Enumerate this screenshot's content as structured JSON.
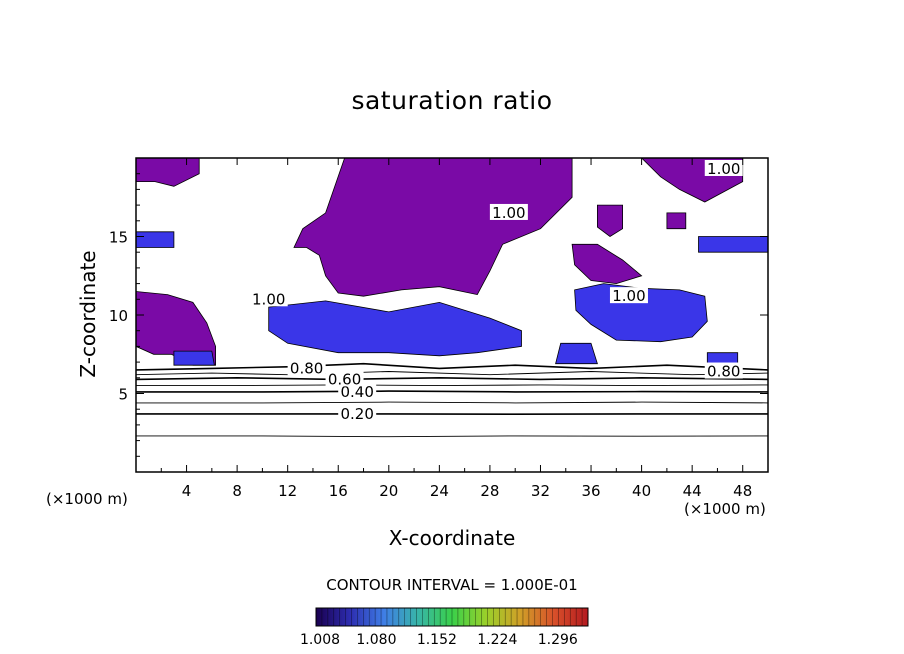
{
  "chart_data": {
    "type": "contour",
    "title": "saturation ratio",
    "xlabel": "X-coordinate",
    "ylabel": "Z-coordinate",
    "x_unit": "(×1000 m)",
    "y_unit": "(×1000 m)",
    "xlim": [
      0,
      50
    ],
    "ylim": [
      0,
      20
    ],
    "x_ticks": [
      "4",
      "8",
      "12",
      "16",
      "20",
      "24",
      "28",
      "32",
      "36",
      "40",
      "44",
      "48"
    ],
    "y_ticks": [
      "5",
      "10",
      "15"
    ],
    "contour_interval_text": "CONTOUR INTERVAL = 1.000E-01",
    "contour_labels": [
      {
        "text": "0.20",
        "x": 17.5,
        "y": 3.7
      },
      {
        "text": "0.40",
        "x": 17.5,
        "y": 5.1
      },
      {
        "text": "0.60",
        "x": 16.5,
        "y": 5.9
      },
      {
        "text": "0.80",
        "x": 13.5,
        "y": 6.6
      },
      {
        "text": "0.80",
        "x": 46.5,
        "y": 6.4
      },
      {
        "text": "1.00",
        "x": 46.5,
        "y": 19.3
      },
      {
        "text": "1.00",
        "x": 29.5,
        "y": 16.5
      },
      {
        "text": "1.00",
        "x": 39.0,
        "y": 11.2
      },
      {
        "text": "1.00",
        "x": 10.5,
        "y": 11.0
      }
    ],
    "fill_regions": [
      {
        "level": "supersaturated",
        "color": "#7a0aa6",
        "points": [
          [
            0,
            20
          ],
          [
            5,
            20
          ],
          [
            5,
            19
          ],
          [
            3,
            18.2
          ],
          [
            1.5,
            18.5
          ],
          [
            0,
            18.5
          ]
        ]
      },
      {
        "level": "supersaturated",
        "color": "#7a0aa6",
        "points": [
          [
            0,
            11.5
          ],
          [
            2.5,
            11.3
          ],
          [
            4.5,
            10.8
          ],
          [
            5.6,
            9.5
          ],
          [
            6.3,
            8
          ],
          [
            6.3,
            6.8
          ],
          [
            4.5,
            6.8
          ],
          [
            2.8,
            7.5
          ],
          [
            1.4,
            7.5
          ],
          [
            0,
            8
          ]
        ]
      },
      {
        "level": "supersaturated",
        "color": "#7a0aa6",
        "points": [
          [
            16.5,
            20
          ],
          [
            34.5,
            20
          ],
          [
            34.5,
            17.5
          ],
          [
            32,
            15.5
          ],
          [
            29,
            14.5
          ],
          [
            28,
            12.8
          ],
          [
            27,
            11.3
          ],
          [
            24,
            11.8
          ],
          [
            21,
            11.6
          ],
          [
            18,
            11.2
          ],
          [
            16,
            11.4
          ],
          [
            15,
            12.5
          ],
          [
            14.5,
            13.8
          ],
          [
            13.5,
            14.3
          ],
          [
            12.5,
            14.3
          ],
          [
            13.2,
            15.5
          ],
          [
            15,
            16.5
          ]
        ]
      },
      {
        "level": "supersaturated",
        "color": "#7a0aa6",
        "points": [
          [
            40,
            20
          ],
          [
            48,
            20
          ],
          [
            48,
            18.5
          ],
          [
            45,
            17.2
          ],
          [
            43,
            18
          ],
          [
            41.5,
            18.8
          ]
        ]
      },
      {
        "level": "supersaturated",
        "color": "#7a0aa6",
        "points": [
          [
            34.5,
            14.5
          ],
          [
            36.5,
            14.5
          ],
          [
            38.5,
            13.5
          ],
          [
            40,
            12.5
          ],
          [
            38,
            12
          ],
          [
            36,
            12.2
          ],
          [
            34.7,
            13.2
          ]
        ]
      },
      {
        "level": "supersaturated",
        "color": "#7a0aa6",
        "points": [
          [
            36.5,
            17
          ],
          [
            38.5,
            17
          ],
          [
            38.5,
            15.5
          ],
          [
            37.5,
            15
          ],
          [
            36.5,
            15.6
          ]
        ]
      },
      {
        "level": "supersaturated",
        "color": "#7a0aa6",
        "points": [
          [
            42,
            16.5
          ],
          [
            43.5,
            16.5
          ],
          [
            43.5,
            15.5
          ],
          [
            42,
            15.5
          ]
        ]
      },
      {
        "level": "cloud-base",
        "color": "#3a36e8",
        "points": [
          [
            10.5,
            10.5
          ],
          [
            15,
            10.9
          ],
          [
            20,
            10.2
          ],
          [
            24,
            10.8
          ],
          [
            28,
            9.8
          ],
          [
            30.5,
            9
          ],
          [
            30.5,
            8
          ],
          [
            27,
            7.6
          ],
          [
            24,
            7.4
          ],
          [
            20,
            7.6
          ],
          [
            16,
            7.6
          ],
          [
            12,
            8.2
          ],
          [
            10.5,
            9
          ]
        ]
      },
      {
        "level": "cloud-base",
        "color": "#3a36e8",
        "points": [
          [
            34.7,
            11.6
          ],
          [
            37,
            12
          ],
          [
            40,
            11.7
          ],
          [
            43,
            11.6
          ],
          [
            45,
            11.2
          ],
          [
            45.2,
            9.6
          ],
          [
            44,
            8.6
          ],
          [
            41.5,
            8.3
          ],
          [
            38,
            8.4
          ],
          [
            36,
            9.4
          ],
          [
            34.8,
            10.3
          ]
        ]
      },
      {
        "level": "cloud-base",
        "color": "#3a36e8",
        "points": [
          [
            3,
            7.7
          ],
          [
            6,
            7.7
          ],
          [
            6.2,
            6.8
          ],
          [
            3,
            6.8
          ]
        ]
      },
      {
        "level": "cloud-base",
        "color": "#3a36e8",
        "points": [
          [
            33.6,
            8.2
          ],
          [
            36,
            8.2
          ],
          [
            36.5,
            6.9
          ],
          [
            33.2,
            6.9
          ]
        ]
      },
      {
        "level": "cloud-base",
        "color": "#3a36e8",
        "points": [
          [
            45.2,
            7.6
          ],
          [
            47.6,
            7.6
          ],
          [
            47.6,
            6.6
          ],
          [
            45.2,
            6.6
          ]
        ]
      },
      {
        "level": "cloud-base",
        "color": "#3a36e8",
        "points": [
          [
            0,
            15.3
          ],
          [
            3,
            15.3
          ],
          [
            3,
            14.3
          ],
          [
            0,
            14.3
          ]
        ]
      },
      {
        "level": "cloud-base",
        "color": "#3a36e8",
        "points": [
          [
            44.5,
            15
          ],
          [
            50,
            15
          ],
          [
            50,
            14
          ],
          [
            44.5,
            14
          ]
        ]
      }
    ],
    "contour_lines": [
      {
        "value": "0.10",
        "points": [
          [
            0,
            2.3
          ],
          [
            10,
            2.3
          ],
          [
            20,
            2.25
          ],
          [
            30,
            2.3
          ],
          [
            40,
            2.28
          ],
          [
            50,
            2.3
          ]
        ]
      },
      {
        "value": "0.20",
        "points": [
          [
            0,
            3.7
          ],
          [
            10,
            3.7
          ],
          [
            20,
            3.7
          ],
          [
            30,
            3.68
          ],
          [
            40,
            3.7
          ],
          [
            50,
            3.7
          ]
        ]
      },
      {
        "value": "0.30",
        "points": [
          [
            0,
            4.4
          ],
          [
            10,
            4.4
          ],
          [
            20,
            4.45
          ],
          [
            30,
            4.4
          ],
          [
            40,
            4.45
          ],
          [
            50,
            4.4
          ]
        ]
      },
      {
        "value": "0.40",
        "points": [
          [
            0,
            5.1
          ],
          [
            10,
            5.1
          ],
          [
            20,
            5.15
          ],
          [
            30,
            5.1
          ],
          [
            40,
            5.12
          ],
          [
            50,
            5.1
          ]
        ]
      },
      {
        "value": "0.50",
        "points": [
          [
            0,
            5.5
          ],
          [
            8,
            5.5
          ],
          [
            16,
            5.55
          ],
          [
            24,
            5.5
          ],
          [
            32,
            5.55
          ],
          [
            40,
            5.5
          ],
          [
            50,
            5.55
          ]
        ]
      },
      {
        "value": "0.60",
        "points": [
          [
            0,
            5.9
          ],
          [
            8,
            6
          ],
          [
            16,
            5.9
          ],
          [
            24,
            6
          ],
          [
            32,
            5.9
          ],
          [
            40,
            6
          ],
          [
            50,
            5.9
          ]
        ]
      },
      {
        "value": "0.70",
        "points": [
          [
            0,
            6.2
          ],
          [
            6,
            6.3
          ],
          [
            12,
            6.2
          ],
          [
            20,
            6.4
          ],
          [
            28,
            6.2
          ],
          [
            36,
            6.4
          ],
          [
            44,
            6.2
          ],
          [
            50,
            6.3
          ]
        ]
      },
      {
        "value": "0.80",
        "points": [
          [
            0,
            6.5
          ],
          [
            6,
            6.6
          ],
          [
            12,
            6.7
          ],
          [
            18,
            6.9
          ],
          [
            24,
            6.6
          ],
          [
            30,
            6.8
          ],
          [
            36,
            6.6
          ],
          [
            42,
            6.8
          ],
          [
            50,
            6.5
          ]
        ]
      }
    ],
    "colorbar": {
      "min": 1.008,
      "max": 1.332,
      "tick_labels": [
        "1.008",
        "1.080",
        "1.152",
        "1.224",
        "1.296"
      ],
      "colors": [
        "#1a0050",
        "#2d2db0",
        "#3f7ee6",
        "#38b5a8",
        "#3ad04a",
        "#9ad02a",
        "#d0a028",
        "#d8502a",
        "#b41a20"
      ]
    }
  }
}
